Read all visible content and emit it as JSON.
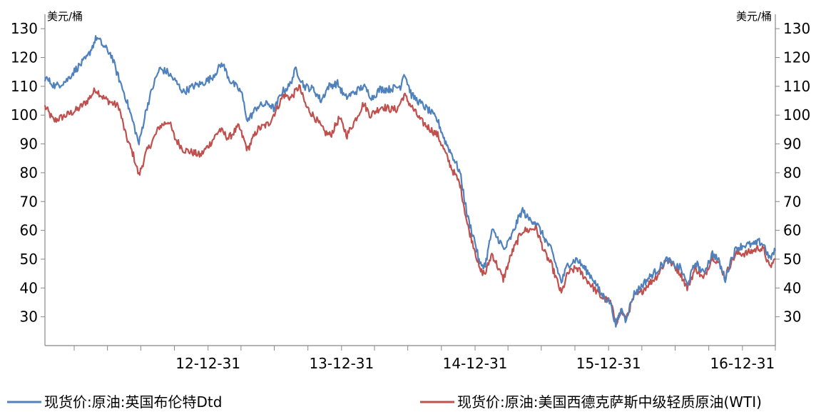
{
  "chart_data": {
    "type": "line",
    "title": "",
    "xlabel": "",
    "ylabel_left": "美元/桶",
    "ylabel_right": "美元/桶",
    "ylim": [
      20,
      135
    ],
    "yticks": [
      30,
      40,
      50,
      60,
      70,
      80,
      90,
      100,
      110,
      120,
      130
    ],
    "xlim": [
      "2011-10-12",
      "2017-03-31"
    ],
    "xtick_labels": [
      {
        "date": "2012-12-31",
        "label": "12-12-31"
      },
      {
        "date": "2013-12-31",
        "label": "13-12-31"
      },
      {
        "date": "2014-12-31",
        "label": "14-12-31"
      },
      {
        "date": "2015-12-31",
        "label": "15-12-31"
      },
      {
        "date": "2016-12-31",
        "label": "16-12-31"
      }
    ],
    "grid": false,
    "legend_position": "bottom",
    "series": [
      {
        "name": "现货价:原油:英国布伦特Dtd",
        "color": "#4F81BD",
        "points": [
          [
            "2011-10-12",
            113
          ],
          [
            "2011-11-10",
            110
          ],
          [
            "2011-12-10",
            112
          ],
          [
            "2012-01-05",
            116
          ],
          [
            "2012-02-05",
            120
          ],
          [
            "2012-03-01",
            127
          ],
          [
            "2012-03-20",
            124
          ],
          [
            "2012-04-10",
            121
          ],
          [
            "2012-04-25",
            115
          ],
          [
            "2012-05-20",
            106
          ],
          [
            "2012-06-10",
            97
          ],
          [
            "2012-06-25",
            90
          ],
          [
            "2012-07-15",
            102
          ],
          [
            "2012-08-05",
            111
          ],
          [
            "2012-08-20",
            116
          ],
          [
            "2012-09-10",
            115
          ],
          [
            "2012-10-01",
            112
          ],
          [
            "2012-10-25",
            108
          ],
          [
            "2012-11-20",
            110
          ],
          [
            "2012-12-15",
            111
          ],
          [
            "2013-01-10",
            113
          ],
          [
            "2013-02-08",
            118
          ],
          [
            "2013-03-01",
            112
          ],
          [
            "2013-04-01",
            108
          ],
          [
            "2013-04-18",
            98
          ],
          [
            "2013-05-15",
            103
          ],
          [
            "2013-06-15",
            104
          ],
          [
            "2013-07-01",
            102
          ],
          [
            "2013-07-20",
            108
          ],
          [
            "2013-08-10",
            110
          ],
          [
            "2013-08-28",
            116
          ],
          [
            "2013-09-20",
            110
          ],
          [
            "2013-10-15",
            109
          ],
          [
            "2013-11-05",
            105
          ],
          [
            "2013-11-25",
            110
          ],
          [
            "2013-12-20",
            111
          ],
          [
            "2014-01-10",
            106
          ],
          [
            "2014-02-05",
            108
          ],
          [
            "2014-03-01",
            110
          ],
          [
            "2014-03-25",
            106
          ],
          [
            "2014-04-15",
            109
          ],
          [
            "2014-05-10",
            109
          ],
          [
            "2014-06-10",
            110
          ],
          [
            "2014-06-20",
            115
          ],
          [
            "2014-07-10",
            107
          ],
          [
            "2014-08-05",
            104
          ],
          [
            "2014-09-01",
            101
          ],
          [
            "2014-09-20",
            98
          ],
          [
            "2014-10-10",
            91
          ],
          [
            "2014-10-30",
            86
          ],
          [
            "2014-11-20",
            80
          ],
          [
            "2014-12-10",
            65
          ],
          [
            "2014-12-31",
            56
          ],
          [
            "2015-01-13",
            48
          ],
          [
            "2015-01-28",
            48
          ],
          [
            "2015-02-15",
            60
          ],
          [
            "2015-03-10",
            56
          ],
          [
            "2015-03-20",
            53
          ],
          [
            "2015-04-10",
            58
          ],
          [
            "2015-04-28",
            64
          ],
          [
            "2015-05-10",
            67
          ],
          [
            "2015-05-25",
            64
          ],
          [
            "2015-06-15",
            63
          ],
          [
            "2015-07-10",
            57
          ],
          [
            "2015-07-28",
            53
          ],
          [
            "2015-08-24",
            42
          ],
          [
            "2015-09-10",
            48
          ],
          [
            "2015-10-05",
            50
          ],
          [
            "2015-10-25",
            47
          ],
          [
            "2015-11-20",
            43
          ],
          [
            "2015-12-10",
            38
          ],
          [
            "2016-01-05",
            35
          ],
          [
            "2016-01-20",
            27
          ],
          [
            "2016-02-05",
            33
          ],
          [
            "2016-02-15",
            29
          ],
          [
            "2016-03-10",
            38
          ],
          [
            "2016-03-25",
            40
          ],
          [
            "2016-04-15",
            43
          ],
          [
            "2016-05-10",
            46
          ],
          [
            "2016-06-08",
            50
          ],
          [
            "2016-06-25",
            48
          ],
          [
            "2016-07-15",
            47
          ],
          [
            "2016-08-02",
            41
          ],
          [
            "2016-08-25",
            49
          ],
          [
            "2016-09-15",
            45
          ],
          [
            "2016-10-10",
            52
          ],
          [
            "2016-10-25",
            50
          ],
          [
            "2016-11-14",
            43
          ],
          [
            "2016-11-30",
            50
          ],
          [
            "2016-12-15",
            54
          ],
          [
            "2017-01-10",
            55
          ],
          [
            "2017-01-31",
            55
          ],
          [
            "2017-02-15",
            56
          ],
          [
            "2017-02-28",
            55
          ],
          [
            "2017-03-15",
            50
          ],
          [
            "2017-03-31",
            53
          ]
        ]
      },
      {
        "name": "现货价:原油:美国西德克萨斯中级轻质原油(WTI)",
        "color": "#C0504D",
        "points": [
          [
            "2011-10-12",
            103
          ],
          [
            "2011-11-05",
            98
          ],
          [
            "2011-12-10",
            100
          ],
          [
            "2012-01-10",
            102
          ],
          [
            "2012-02-05",
            105
          ],
          [
            "2012-02-28",
            109
          ],
          [
            "2012-03-20",
            106
          ],
          [
            "2012-04-15",
            104
          ],
          [
            "2012-05-01",
            103
          ],
          [
            "2012-05-20",
            93
          ],
          [
            "2012-06-10",
            86
          ],
          [
            "2012-06-25",
            79
          ],
          [
            "2012-07-15",
            87
          ],
          [
            "2012-08-05",
            92
          ],
          [
            "2012-08-20",
            96
          ],
          [
            "2012-09-15",
            98
          ],
          [
            "2012-10-01",
            92
          ],
          [
            "2012-10-25",
            88
          ],
          [
            "2012-11-20",
            87
          ],
          [
            "2012-12-10",
            86
          ],
          [
            "2013-01-05",
            90
          ],
          [
            "2013-02-01",
            95
          ],
          [
            "2013-02-25",
            92
          ],
          [
            "2013-03-25",
            96
          ],
          [
            "2013-04-18",
            88
          ],
          [
            "2013-05-15",
            95
          ],
          [
            "2013-06-15",
            97
          ],
          [
            "2013-07-10",
            103
          ],
          [
            "2013-07-25",
            107
          ],
          [
            "2013-08-15",
            106
          ],
          [
            "2013-09-06",
            110
          ],
          [
            "2013-09-25",
            103
          ],
          [
            "2013-10-20",
            99
          ],
          [
            "2013-11-15",
            94
          ],
          [
            "2013-12-01",
            93
          ],
          [
            "2013-12-25",
            99
          ],
          [
            "2014-01-15",
            93
          ],
          [
            "2014-02-05",
            98
          ],
          [
            "2014-03-01",
            104
          ],
          [
            "2014-03-20",
            100
          ],
          [
            "2014-04-20",
            103
          ],
          [
            "2014-05-15",
            102
          ],
          [
            "2014-06-01",
            102
          ],
          [
            "2014-06-20",
            107
          ],
          [
            "2014-07-10",
            103
          ],
          [
            "2014-08-05",
            98
          ],
          [
            "2014-09-01",
            95
          ],
          [
            "2014-09-20",
            93
          ],
          [
            "2014-10-10",
            87
          ],
          [
            "2014-10-30",
            81
          ],
          [
            "2014-11-20",
            76
          ],
          [
            "2014-12-10",
            62
          ],
          [
            "2014-12-31",
            53
          ],
          [
            "2015-01-13",
            46
          ],
          [
            "2015-01-28",
            45
          ],
          [
            "2015-02-15",
            52
          ],
          [
            "2015-03-18",
            43
          ],
          [
            "2015-04-10",
            52
          ],
          [
            "2015-04-28",
            57
          ],
          [
            "2015-05-10",
            60
          ],
          [
            "2015-05-25",
            60
          ],
          [
            "2015-06-15",
            61
          ],
          [
            "2015-07-10",
            52
          ],
          [
            "2015-07-28",
            48
          ],
          [
            "2015-08-24",
            38
          ],
          [
            "2015-09-10",
            45
          ],
          [
            "2015-10-05",
            47
          ],
          [
            "2015-10-25",
            44
          ],
          [
            "2015-11-20",
            40
          ],
          [
            "2015-12-10",
            37
          ],
          [
            "2016-01-05",
            35
          ],
          [
            "2016-01-20",
            28
          ],
          [
            "2016-02-05",
            32
          ],
          [
            "2016-02-15",
            29
          ],
          [
            "2016-03-10",
            37
          ],
          [
            "2016-03-25",
            38
          ],
          [
            "2016-04-15",
            41
          ],
          [
            "2016-05-10",
            44
          ],
          [
            "2016-06-08",
            50
          ],
          [
            "2016-06-25",
            48
          ],
          [
            "2016-07-15",
            45
          ],
          [
            "2016-08-02",
            40
          ],
          [
            "2016-08-25",
            47
          ],
          [
            "2016-09-15",
            43
          ],
          [
            "2016-10-10",
            51
          ],
          [
            "2016-10-25",
            49
          ],
          [
            "2016-11-14",
            44
          ],
          [
            "2016-11-30",
            49
          ],
          [
            "2016-12-15",
            52
          ],
          [
            "2017-01-10",
            52
          ],
          [
            "2017-01-31",
            53
          ],
          [
            "2017-02-15",
            54
          ],
          [
            "2017-02-28",
            53
          ],
          [
            "2017-03-15",
            47
          ],
          [
            "2017-03-31",
            50
          ]
        ]
      }
    ]
  }
}
